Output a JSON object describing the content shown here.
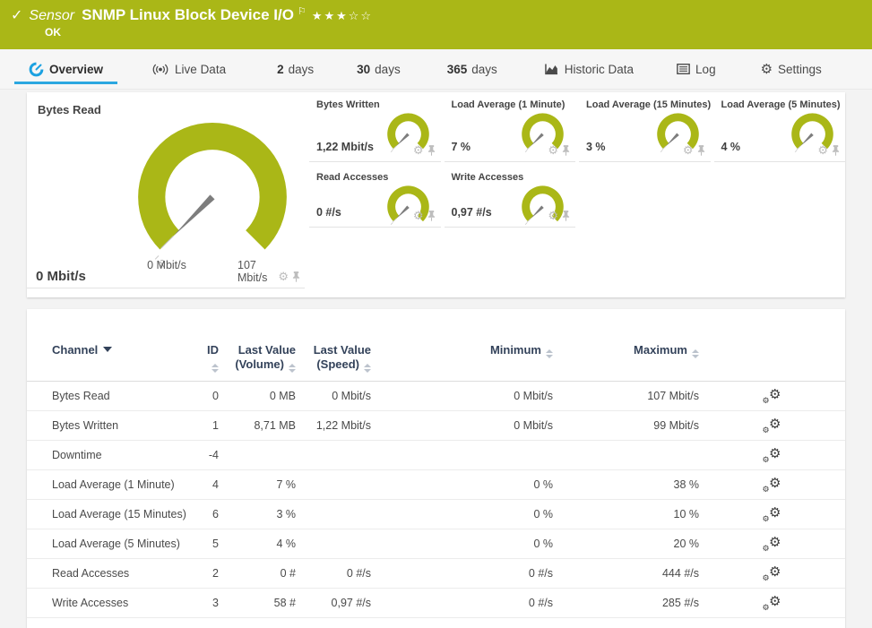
{
  "colors": {
    "brand_green": "#aab717",
    "accent_blue": "#2ba7e0",
    "table_header_text": "#33425a",
    "needle_gray": "#7d7d7d",
    "page_background": "#f3f3f3"
  },
  "header": {
    "check": "✓",
    "kind": "Sensor",
    "title": "SNMP Linux Block Device I/O",
    "flag": "⚐",
    "stars": "★★★☆☆",
    "status": "OK"
  },
  "tabs": [
    {
      "label": "Overview",
      "icon": "gauge-icon",
      "active": true
    },
    {
      "label": "Live Data",
      "icon": "live-data-icon"
    },
    {
      "prefix": "2",
      "label": "days"
    },
    {
      "prefix": "30",
      "label": "days"
    },
    {
      "prefix": "365",
      "label": "days"
    },
    {
      "label": "Historic Data",
      "icon": "historic-chart-icon"
    },
    {
      "label": "Log",
      "icon": "log-icon"
    },
    {
      "label": "Settings",
      "icon": "gear-icon"
    }
  ],
  "gauges": {
    "primary": {
      "title": "Bytes Read",
      "value": "0 Mbit/s",
      "min_label": "0 Mbit/s",
      "max_label": "107 Mbit/s",
      "avg_marker": "x̄"
    },
    "small": [
      {
        "title": "Bytes Written",
        "value": "1,22 Mbit/s",
        "row": 1
      },
      {
        "title": "Load Average (1 Minute)",
        "value": "7 %",
        "row": 1
      },
      {
        "title": "Load Average (15 Minutes)",
        "value": "3 %",
        "row": 1
      },
      {
        "title": "Load Average (5 Minutes)",
        "value": "4 %",
        "row": 1
      },
      {
        "title": "Read Accesses",
        "value": "0 #/s",
        "row": 2
      },
      {
        "title": "Write Accesses",
        "value": "0,97 #/s",
        "row": 2
      }
    ]
  },
  "table": {
    "columns": [
      "Channel",
      "ID",
      "Last Value (Volume)",
      "Last Value (Speed)",
      "Minimum",
      "Maximum"
    ],
    "rows": [
      {
        "channel": "Bytes Read",
        "id": "0",
        "vol": "0 MB",
        "speed": "0 Mbit/s",
        "min": "0 Mbit/s",
        "max": "107 Mbit/s"
      },
      {
        "channel": "Bytes Written",
        "id": "1",
        "vol": "8,71 MB",
        "speed": "1,22 Mbit/s",
        "min": "0 Mbit/s",
        "max": "99 Mbit/s"
      },
      {
        "channel": "Downtime",
        "id": "-4",
        "vol": "",
        "speed": "",
        "min": "",
        "max": ""
      },
      {
        "channel": "Load Average (1 Minute)",
        "id": "4",
        "vol": "7 %",
        "speed": "",
        "min": "0 %",
        "max": "38 %"
      },
      {
        "channel": "Load Average (15 Minutes)",
        "id": "6",
        "vol": "3 %",
        "speed": "",
        "min": "0 %",
        "max": "10 %"
      },
      {
        "channel": "Load Average (5 Minutes)",
        "id": "5",
        "vol": "4 %",
        "speed": "",
        "min": "0 %",
        "max": "20 %"
      },
      {
        "channel": "Read Accesses",
        "id": "2",
        "vol": "0 #",
        "speed": "0 #/s",
        "min": "0 #/s",
        "max": "444 #/s"
      },
      {
        "channel": "Write Accesses",
        "id": "3",
        "vol": "58 #",
        "speed": "0,97 #/s",
        "min": "0 #/s",
        "max": "285 #/s"
      }
    ]
  }
}
